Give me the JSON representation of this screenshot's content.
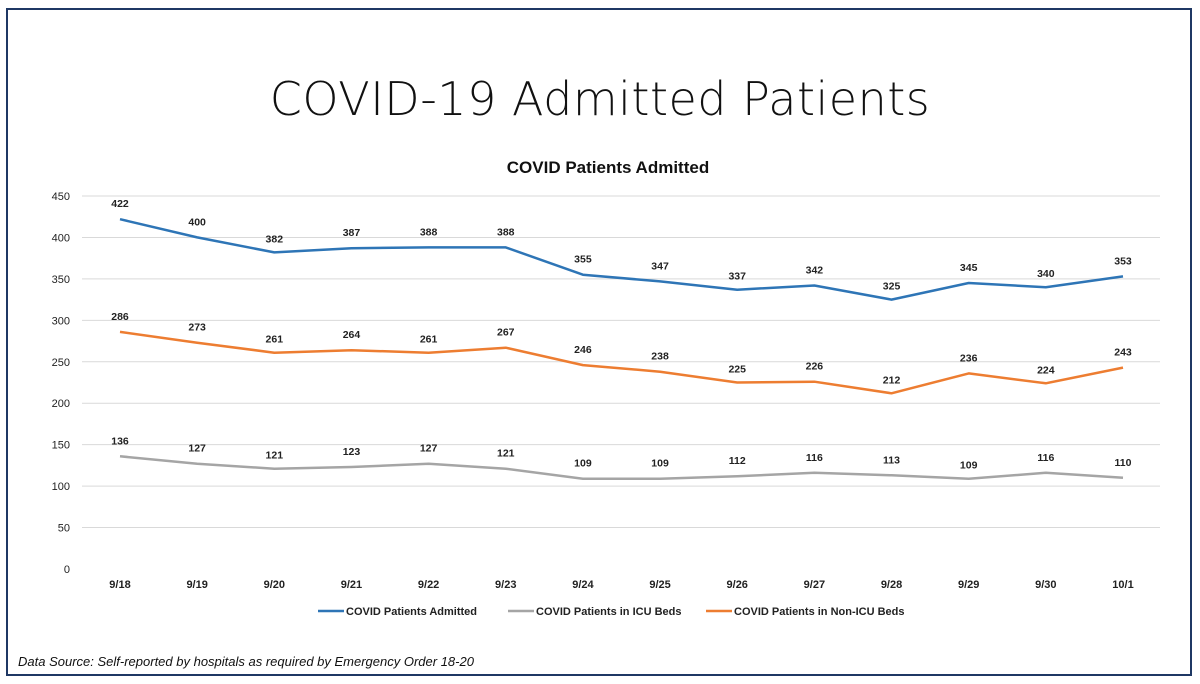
{
  "slide": {
    "title": "COVID-19 Admitted Patients",
    "source": "Data Source: Self-reported by hospitals as required by Emergency Order 18-20"
  },
  "chart_data": {
    "type": "line",
    "title": "COVID Patients Admitted",
    "xlabel": "",
    "ylabel": "",
    "categories": [
      "9/18",
      "9/19",
      "9/20",
      "9/21",
      "9/22",
      "9/23",
      "9/24",
      "9/25",
      "9/26",
      "9/27",
      "9/28",
      "9/29",
      "9/30",
      "10/1"
    ],
    "ylim": [
      0,
      450
    ],
    "yticks": [
      0,
      50,
      100,
      150,
      200,
      250,
      300,
      350,
      400,
      450
    ],
    "grid": true,
    "legend": "bottom",
    "series": [
      {
        "name": "COVID Patients Admitted",
        "color": "#2e75b6",
        "values": [
          422,
          400,
          382,
          387,
          388,
          388,
          355,
          347,
          337,
          342,
          325,
          345,
          340,
          353
        ]
      },
      {
        "name": "COVID Patients in ICU Beds",
        "color": "#a5a5a5",
        "values": [
          136,
          127,
          121,
          123,
          127,
          121,
          109,
          109,
          112,
          116,
          113,
          109,
          116,
          110
        ]
      },
      {
        "name": "COVID Patients in Non-ICU Beds",
        "color": "#ed7d31",
        "values": [
          286,
          273,
          261,
          264,
          261,
          267,
          246,
          238,
          225,
          226,
          212,
          236,
          224,
          243
        ]
      }
    ]
  }
}
